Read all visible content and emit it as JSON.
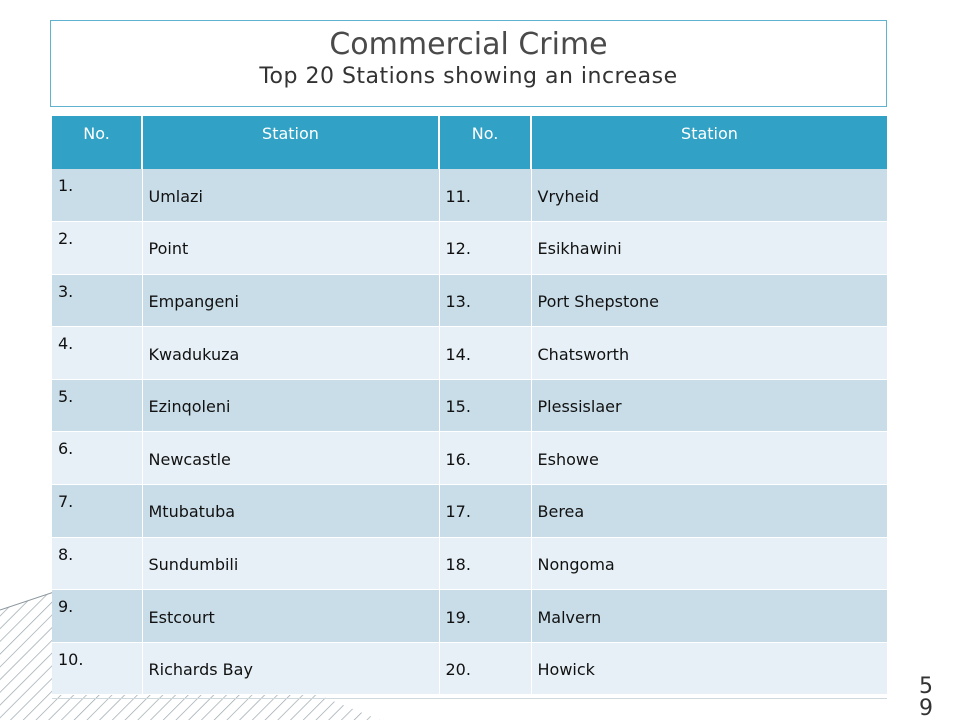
{
  "header": {
    "title": "Commercial Crime",
    "subtitle": "Top 20 Stations showing an increase"
  },
  "table": {
    "columns": [
      "No.",
      "Station",
      "No.",
      "Station"
    ],
    "rows": [
      [
        "1.",
        "Umlazi",
        "11.",
        "Vryheid"
      ],
      [
        "2.",
        "Point",
        "12.",
        "Esikhawini"
      ],
      [
        "3.",
        "Empangeni",
        "13.",
        "Port Shepstone"
      ],
      [
        "4.",
        "Kwadukuza",
        "14.",
        "Chatsworth"
      ],
      [
        "5.",
        "Ezinqoleni",
        "15.",
        "Plessislaer"
      ],
      [
        "6.",
        "Newcastle",
        "16.",
        "Eshowe"
      ],
      [
        "7.",
        "Mtubatuba",
        "17.",
        "Berea"
      ],
      [
        "8.",
        "Sundumbili",
        "18.",
        "Nongoma"
      ],
      [
        "9.",
        "Estcourt",
        "19.",
        "Malvern"
      ],
      [
        "10.",
        "Richards Bay",
        "20.",
        "Howick"
      ]
    ]
  },
  "footer": {
    "page_number_line1": "5",
    "page_number_line2": "9"
  },
  "colors": {
    "header_bg": "#31a2c5",
    "row_dark": "#c9dde9",
    "row_light": "#e6f0f6",
    "title_border": "#5fb3cf"
  }
}
